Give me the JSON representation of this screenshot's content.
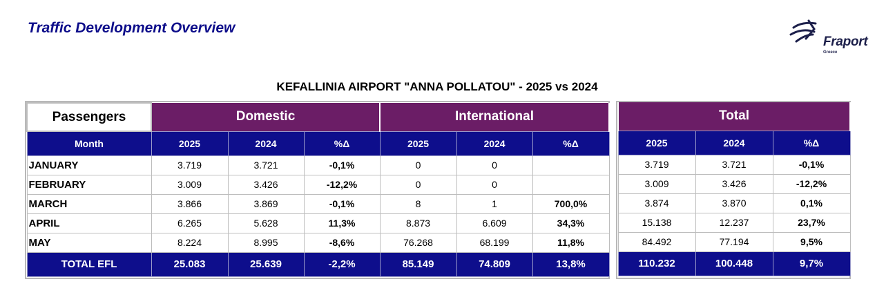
{
  "header": {
    "title": "Traffic Development Overview"
  },
  "logo": {
    "word": "Fraport",
    "sub": "Greece"
  },
  "report_title": "KEFALLINIA AIRPORT \"ANNA POLLATOU\" - 2025 vs 2024",
  "table": {
    "passengers_label": "Passengers",
    "groups": {
      "domestic": "Domestic",
      "international": "International",
      "total": "Total"
    },
    "columns": {
      "month": "Month",
      "y2025": "2025",
      "y2024": "2024",
      "delta": "%Δ"
    },
    "rows": [
      {
        "month": "JANUARY",
        "dom": [
          "3.719",
          "3.721",
          "-0,1%"
        ],
        "intl": [
          "0",
          "0",
          ""
        ],
        "tot": [
          "3.719",
          "3.721",
          "-0,1%"
        ]
      },
      {
        "month": "FEBRUARY",
        "dom": [
          "3.009",
          "3.426",
          "-12,2%"
        ],
        "intl": [
          "0",
          "0",
          ""
        ],
        "tot": [
          "3.009",
          "3.426",
          "-12,2%"
        ]
      },
      {
        "month": "MARCH",
        "dom": [
          "3.866",
          "3.869",
          "-0,1%"
        ],
        "intl": [
          "8",
          "1",
          "700,0%"
        ],
        "tot": [
          "3.874",
          "3.870",
          "0,1%"
        ]
      },
      {
        "month": "APRIL",
        "dom": [
          "6.265",
          "5.628",
          "11,3%"
        ],
        "intl": [
          "8.873",
          "6.609",
          "34,3%"
        ],
        "tot": [
          "15.138",
          "12.237",
          "23,7%"
        ]
      },
      {
        "month": "MAY",
        "dom": [
          "8.224",
          "8.995",
          "-8,6%"
        ],
        "intl": [
          "76.268",
          "68.199",
          "11,8%"
        ],
        "tot": [
          "84.492",
          "77.194",
          "9,5%"
        ]
      }
    ],
    "total": {
      "label": "TOTAL EFL",
      "dom": [
        "25.083",
        "25.639",
        "-2,2%"
      ],
      "intl": [
        "85.149",
        "74.809",
        "13,8%"
      ],
      "tot": [
        "110.232",
        "100.448",
        "9,7%"
      ]
    }
  },
  "colors": {
    "purple": "#6b1d66",
    "navy": "#0e0e8c",
    "title_blue": "#0d0d8a"
  }
}
